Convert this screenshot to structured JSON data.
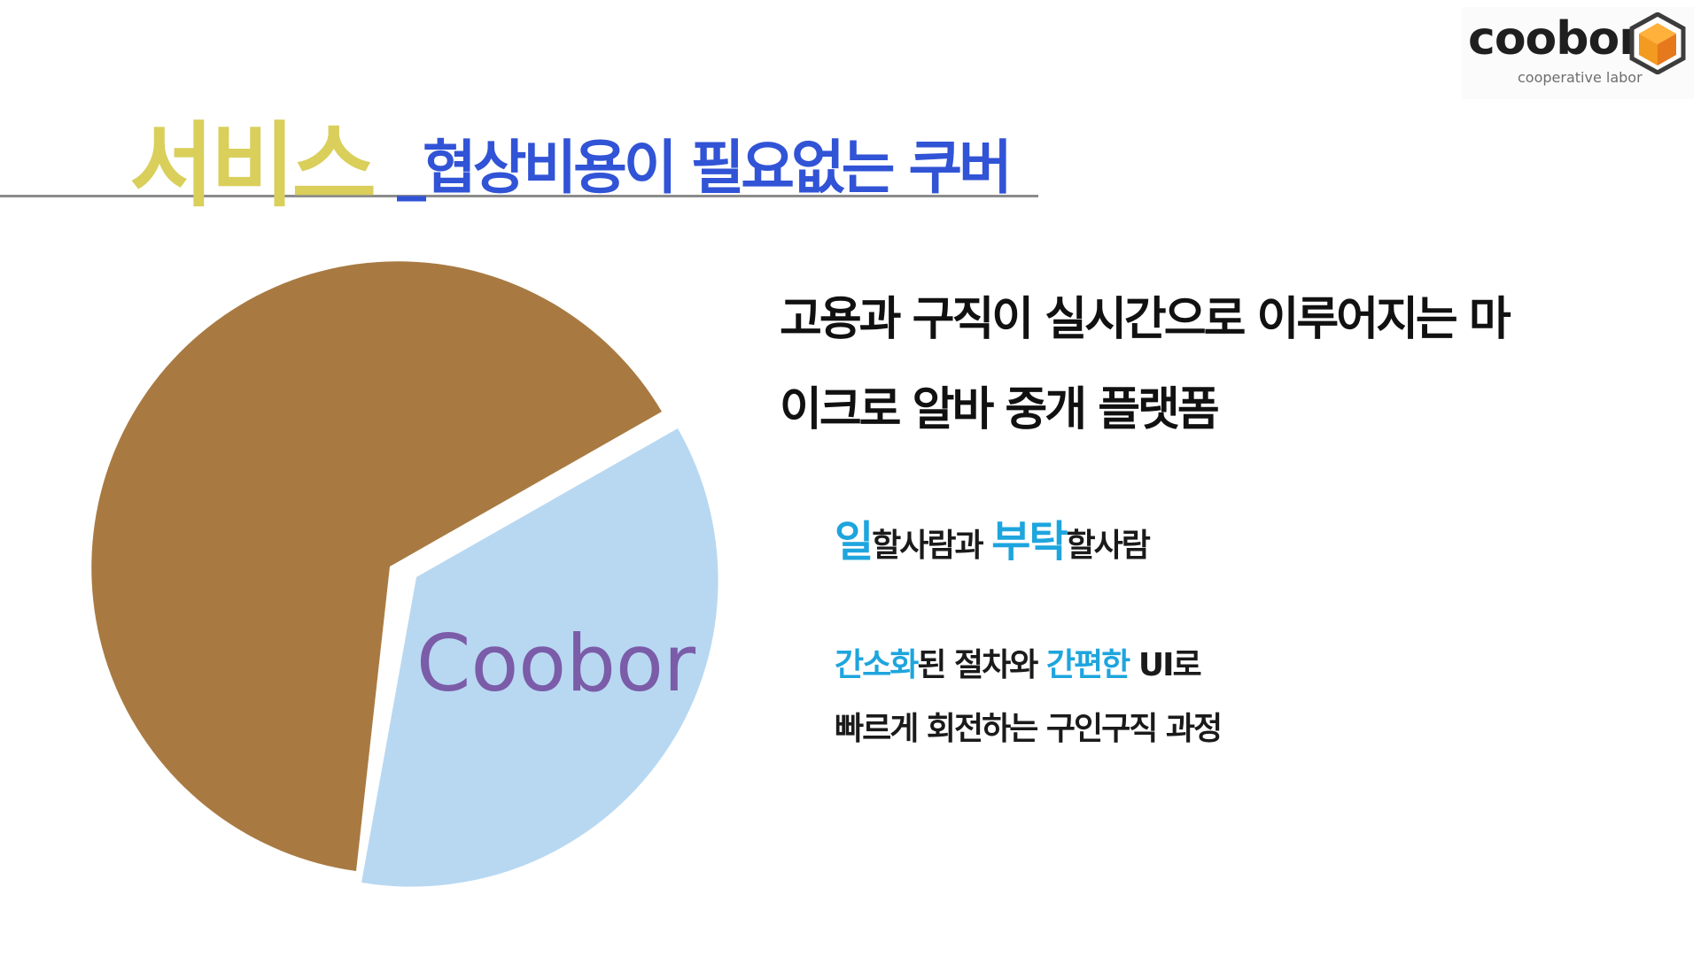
{
  "logo": {
    "wordmark": "coobor",
    "tagline": "cooperative labor",
    "icon": "hexagon-cube-icon"
  },
  "title": {
    "main": "서비스",
    "sub": "_협상비용이 필요없는 쿠버"
  },
  "pie": {
    "label": "Coobor",
    "segments": [
      {
        "name": "brown",
        "color": "#a87a42"
      },
      {
        "name": "coobor",
        "color": "#b8d8f2"
      }
    ]
  },
  "headline": {
    "line1": "고용과 구직이 실시간으로 이루어지는 마",
    "line2": "이크로 알바 중개 플랫폼"
  },
  "point1": {
    "part1_accent": "일",
    "part2": "할사람과 ",
    "part3_accent": "부탁",
    "part4": "할사람"
  },
  "point2": {
    "part1_accent": "간소화",
    "part2": "된 절차와 ",
    "part3_accent": "간편한",
    "part4": " UI로"
  },
  "point3": {
    "text": "빠르게 회전하는 구인구직 과정"
  },
  "colors": {
    "title_main": "#d9cf5a",
    "title_sub": "#3153d6",
    "accent": "#1ea5de",
    "pie_brown": "#a87a42",
    "pie_blue": "#b8d8f2",
    "pie_label": "#7b5ca8"
  }
}
